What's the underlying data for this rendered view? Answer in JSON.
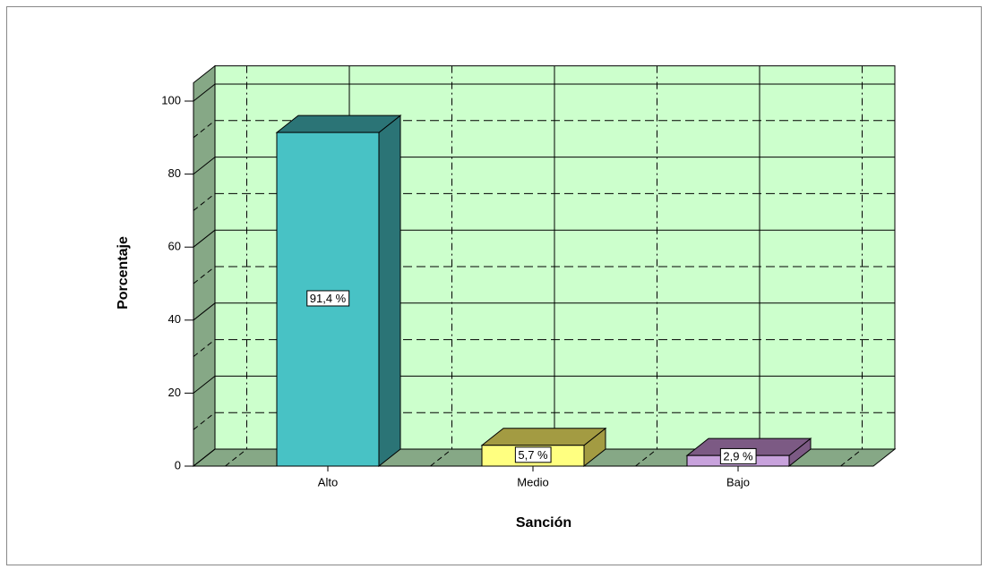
{
  "chart_data": {
    "type": "bar3d",
    "x_label": "Sanción",
    "y_label": "Porcentaje",
    "categories": [
      "Alto",
      "Medio",
      "Bajo"
    ],
    "values": [
      91.4,
      5.7,
      2.9
    ],
    "value_labels": [
      "91,4 %",
      "5,7 %",
      "2,9 %"
    ],
    "colors": [
      "#48c2c5",
      "#ffff80",
      "#c8a2dc"
    ],
    "side_colors": [
      "#2b7476",
      "#a39b42",
      "#7c5a84"
    ],
    "ylim": [
      0,
      105
    ],
    "yticks": [
      0,
      20,
      40,
      60,
      80,
      100
    ],
    "grid": true
  }
}
